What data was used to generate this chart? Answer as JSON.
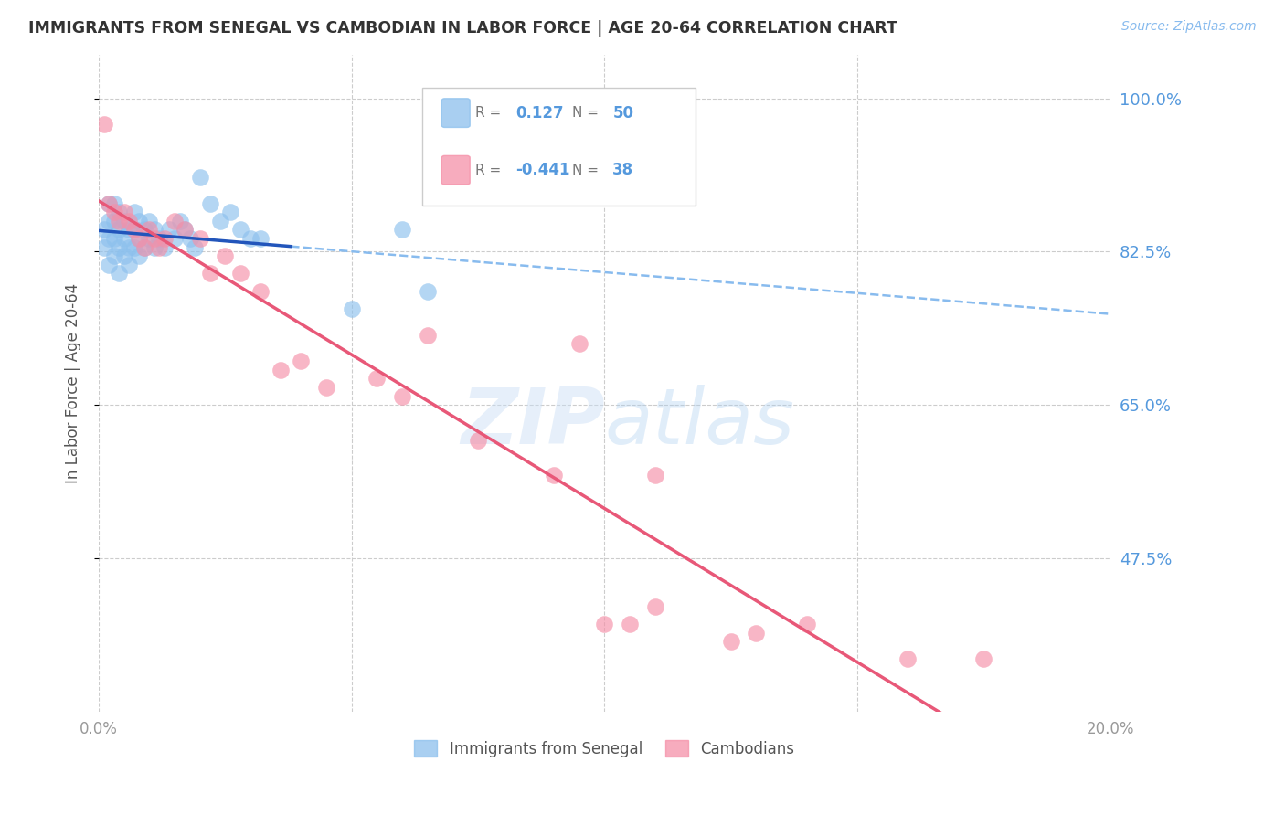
{
  "title": "IMMIGRANTS FROM SENEGAL VS CAMBODIAN IN LABOR FORCE | AGE 20-64 CORRELATION CHART",
  "source": "Source: ZipAtlas.com",
  "ylabel": "In Labor Force | Age 20-64",
  "xlim": [
    0.0,
    0.2
  ],
  "ylim": [
    0.3,
    1.05
  ],
  "yticks": [
    0.475,
    0.65,
    0.825,
    1.0
  ],
  "ytick_labels": [
    "47.5%",
    "65.0%",
    "82.5%",
    "100.0%"
  ],
  "xticks": [
    0.0,
    0.05,
    0.1,
    0.15,
    0.2
  ],
  "xtick_labels": [
    "0.0%",
    "",
    "",
    "",
    "20.0%"
  ],
  "senegal_color": "#8CC0ED",
  "cambodian_color": "#F590A8",
  "trendline_senegal_color": "#2255BB",
  "trendline_cambodian_color": "#E85878",
  "dashed_color": "#88BBEE",
  "background_color": "#FFFFFF",
  "grid_color": "#CCCCCC",
  "right_label_color": "#5599DD",
  "title_color": "#333333",
  "senegal_points_x": [
    0.001,
    0.001,
    0.002,
    0.002,
    0.002,
    0.002,
    0.003,
    0.003,
    0.003,
    0.003,
    0.004,
    0.004,
    0.004,
    0.004,
    0.005,
    0.005,
    0.005,
    0.006,
    0.006,
    0.006,
    0.007,
    0.007,
    0.007,
    0.008,
    0.008,
    0.008,
    0.009,
    0.009,
    0.01,
    0.01,
    0.011,
    0.011,
    0.012,
    0.013,
    0.014,
    0.015,
    0.016,
    0.017,
    0.018,
    0.019,
    0.02,
    0.022,
    0.024,
    0.026,
    0.028,
    0.03,
    0.032,
    0.05,
    0.06,
    0.065
  ],
  "senegal_points_y": [
    0.83,
    0.85,
    0.81,
    0.84,
    0.86,
    0.88,
    0.82,
    0.84,
    0.86,
    0.88,
    0.8,
    0.83,
    0.85,
    0.87,
    0.82,
    0.84,
    0.86,
    0.81,
    0.83,
    0.85,
    0.83,
    0.85,
    0.87,
    0.82,
    0.84,
    0.86,
    0.83,
    0.85,
    0.84,
    0.86,
    0.83,
    0.85,
    0.84,
    0.83,
    0.85,
    0.84,
    0.86,
    0.85,
    0.84,
    0.83,
    0.91,
    0.88,
    0.86,
    0.87,
    0.85,
    0.84,
    0.84,
    0.76,
    0.85,
    0.78
  ],
  "cambodian_points_x": [
    0.001,
    0.002,
    0.003,
    0.004,
    0.005,
    0.006,
    0.007,
    0.008,
    0.009,
    0.01,
    0.011,
    0.012,
    0.013,
    0.015,
    0.017,
    0.02,
    0.022,
    0.025,
    0.028,
    0.032,
    0.036,
    0.04,
    0.045,
    0.055,
    0.06,
    0.065,
    0.075,
    0.09,
    0.1,
    0.105,
    0.11,
    0.125,
    0.14,
    0.16,
    0.175,
    0.11,
    0.13,
    0.095
  ],
  "cambodian_points_y": [
    0.97,
    0.88,
    0.87,
    0.86,
    0.87,
    0.86,
    0.85,
    0.84,
    0.83,
    0.85,
    0.84,
    0.83,
    0.84,
    0.86,
    0.85,
    0.84,
    0.8,
    0.82,
    0.8,
    0.78,
    0.69,
    0.7,
    0.67,
    0.68,
    0.66,
    0.73,
    0.61,
    0.57,
    0.4,
    0.4,
    0.42,
    0.38,
    0.4,
    0.36,
    0.36,
    0.57,
    0.39,
    0.72
  ]
}
